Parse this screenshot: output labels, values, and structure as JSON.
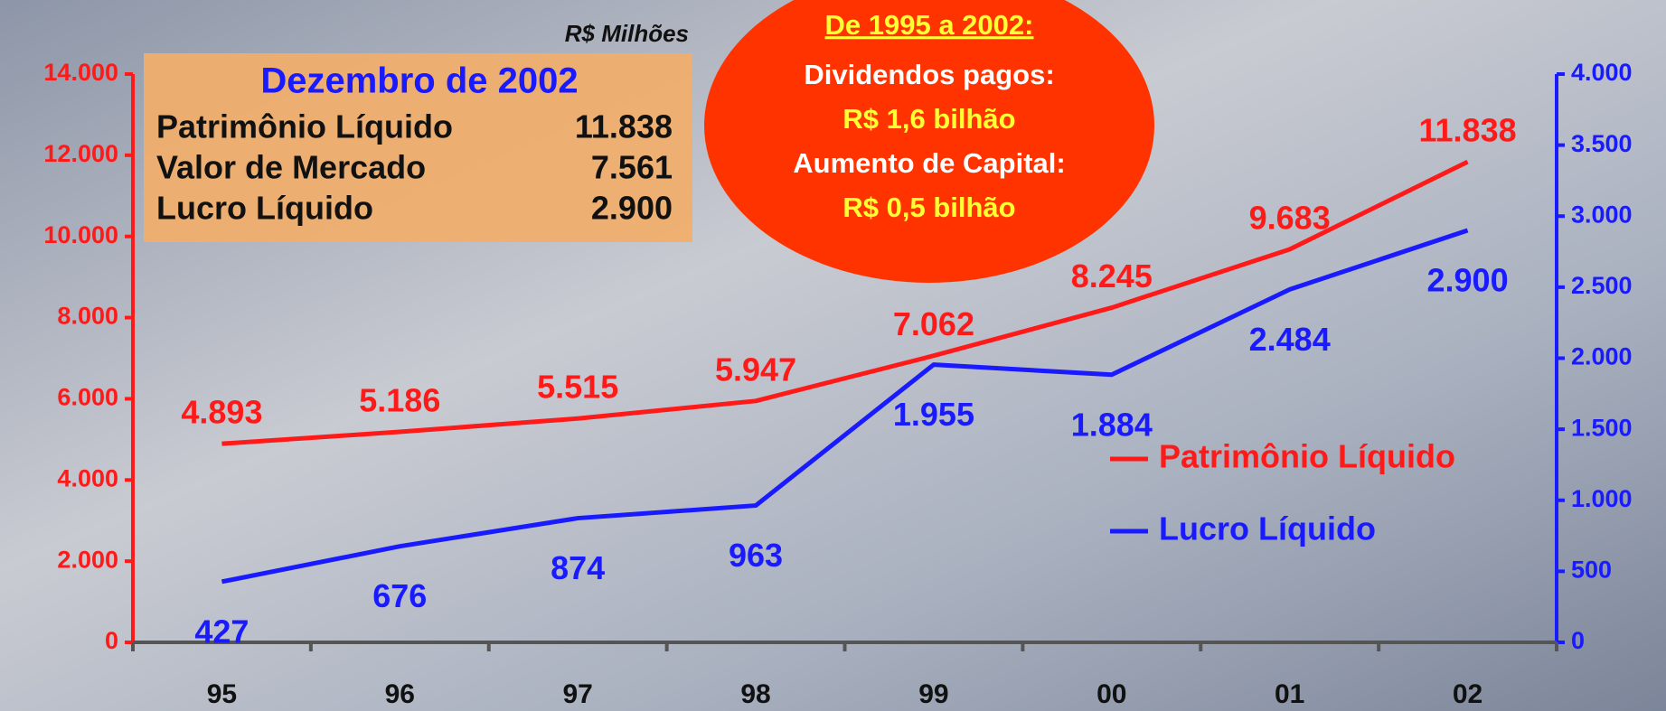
{
  "chart_data": {
    "type": "line",
    "unit_label": "R$ Milhões",
    "categories": [
      "95",
      "96",
      "97",
      "98",
      "99",
      "00",
      "01",
      "02"
    ],
    "series": [
      {
        "name": "Patrimônio Líquido",
        "color": "#ff1a1a",
        "values": [
          4893,
          5186,
          5515,
          5947,
          7062,
          8245,
          9683,
          11838
        ],
        "value_labels": [
          "4.893",
          "5.186",
          "5.515",
          "5.947",
          "7.062",
          "8.245",
          "9.683",
          "11.838"
        ]
      },
      {
        "name": "Lucro Líquido",
        "color": "#1a1aff",
        "axis": "y2",
        "values": [
          427,
          676,
          874,
          963,
          1955,
          1884,
          2484,
          2900
        ],
        "value_labels": [
          "427",
          "676",
          "874",
          "963",
          "1.955",
          "1.884",
          "2.484",
          "2.900"
        ]
      }
    ],
    "ylim": [
      0,
      14000
    ],
    "yticks": [
      0,
      {
        "value": 2000,
        "label": "2.000"
      },
      {
        "value": 4000,
        "label": "4.000"
      },
      {
        "value": 6000,
        "label": "6.000"
      },
      {
        "value": 8000,
        "label": "8.000"
      },
      {
        "value": 10000,
        "label": "10.000"
      },
      {
        "value": 12000,
        "label": "12.000"
      },
      {
        "value": 14000,
        "label": "14.000"
      }
    ],
    "y2lim": [
      0,
      4000
    ],
    "y2ticks": [
      0,
      500,
      {
        "value": 1000,
        "label": "1.000"
      },
      {
        "value": 1500,
        "label": "1.500"
      },
      {
        "value": 2000,
        "label": "2.000"
      },
      {
        "value": 2500,
        "label": "2.500"
      },
      {
        "value": 3000,
        "label": "3.000"
      },
      {
        "value": 3500,
        "label": "3.500"
      },
      {
        "value": 4000,
        "label": "4.000"
      }
    ],
    "summary_box": {
      "title": "Dezembro de 2002",
      "rows": [
        [
          "Patrimônio Líquido",
          "11.838"
        ],
        [
          "Valor de Mercado",
          "7.561"
        ],
        [
          "Lucro Líquido",
          "2.900"
        ]
      ]
    },
    "callout": {
      "title": "De 1995 a 2002:",
      "lines": [
        "Dividendos pagos:",
        "R$ 1,6 bilhão",
        "Aumento de Capital:",
        "R$ 0,5 bilhão"
      ]
    }
  }
}
